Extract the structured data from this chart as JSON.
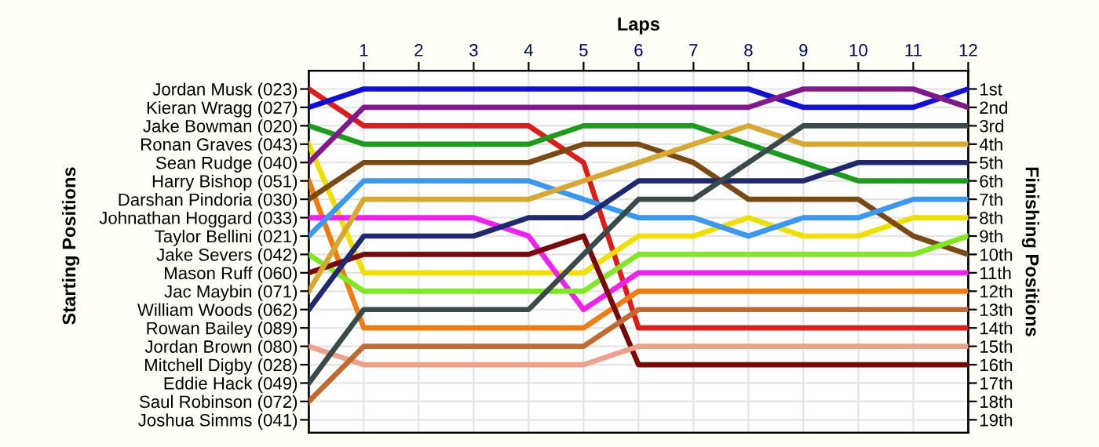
{
  "chart_data": {
    "type": "line",
    "xlabel": "Laps",
    "annotations": [
      "Starting Positions"
    ],
    "y2label": "Finishing Positions",
    "x": [
      0,
      1,
      2,
      3,
      4,
      5,
      6,
      7,
      8,
      9,
      10,
      11,
      12
    ],
    "xlim": [
      0,
      12
    ],
    "xticks": [
      1,
      2,
      3,
      4,
      5,
      6,
      7,
      8,
      9,
      10,
      11,
      12
    ],
    "y2lim": [
      19.7,
      0
    ],
    "y2ticks": [
      {
        "value": 1,
        "label": "1st"
      },
      {
        "value": 2,
        "label": "2nd"
      },
      {
        "value": 3,
        "label": "3rd"
      },
      {
        "value": 4,
        "label": "4th"
      },
      {
        "value": 5,
        "label": "5th"
      },
      {
        "value": 6,
        "label": "6th"
      },
      {
        "value": 7,
        "label": "7th"
      },
      {
        "value": 8,
        "label": "8th"
      },
      {
        "value": 9,
        "label": "9th"
      },
      {
        "value": 10,
        "label": "10th"
      },
      {
        "value": 11,
        "label": "11th"
      },
      {
        "value": 12,
        "label": "12th"
      },
      {
        "value": 13,
        "label": "13th"
      },
      {
        "value": 14,
        "label": "14th"
      },
      {
        "value": 15,
        "label": "15th"
      },
      {
        "value": 16,
        "label": "16th"
      },
      {
        "value": 17,
        "label": "17th"
      },
      {
        "value": 18,
        "label": "18th"
      },
      {
        "value": 19,
        "label": "19th"
      }
    ],
    "grid": true,
    "marker": "none",
    "line_style": "solid",
    "series": [
      {
        "name": "Jordan Musk (023)",
        "axis": "y2",
        "color": "#dd1c1c",
        "values": [
          1,
          3,
          3,
          3,
          3,
          5,
          14,
          14,
          14,
          14,
          14,
          14,
          14
        ]
      },
      {
        "name": "Kieran Wragg (027)",
        "axis": "y2",
        "color": "#1010d8",
        "values": [
          2,
          1,
          1,
          1,
          1,
          1,
          1,
          1,
          1,
          2,
          2,
          2,
          1
        ]
      },
      {
        "name": "Jake Bowman (020)",
        "axis": "y2",
        "color": "#1c9c1c",
        "values": [
          3,
          4,
          4,
          4,
          4,
          3,
          3,
          3,
          4,
          5,
          6,
          6,
          6
        ]
      },
      {
        "name": "Ronan Graves (043)",
        "axis": "y2",
        "color": "#f0e000",
        "values": [
          4,
          11,
          11,
          11,
          11,
          11,
          9,
          9,
          8,
          9,
          9,
          8,
          8
        ]
      },
      {
        "name": "Sean Rudge (040)",
        "axis": "y2",
        "color": "#801a8a",
        "values": [
          5,
          2,
          2,
          2,
          2,
          2,
          2,
          2,
          2,
          1,
          1,
          1,
          2
        ]
      },
      {
        "name": "Harry Bishop (051)",
        "axis": "y2",
        "color": "#f07c10",
        "values": [
          6,
          14,
          14,
          14,
          14,
          14,
          12,
          12,
          12,
          12,
          12,
          12,
          12
        ]
      },
      {
        "name": "Darshan Pindoria (030)",
        "axis": "y2",
        "color": "#7a4a12",
        "values": [
          7,
          5,
          5,
          5,
          5,
          4,
          4,
          5,
          7,
          7,
          7,
          9,
          10
        ]
      },
      {
        "name": "Johnathan Hoggard (033)",
        "axis": "y2",
        "color": "#f020f0",
        "values": [
          8,
          8,
          8,
          8,
          9,
          13,
          11,
          11,
          11,
          11,
          11,
          11,
          11
        ]
      },
      {
        "name": "Taylor Bellini (021)",
        "axis": "y2",
        "color": "#3a98f0",
        "values": [
          9,
          6,
          6,
          6,
          6,
          7,
          8,
          8,
          9,
          8,
          8,
          7,
          7
        ]
      },
      {
        "name": "Jake Severs (042)",
        "axis": "y2",
        "color": "#80e820",
        "values": [
          10,
          12,
          12,
          12,
          12,
          12,
          10,
          10,
          10,
          10,
          10,
          10,
          9
        ]
      },
      {
        "name": "Mason Ruff (060)",
        "axis": "y2",
        "color": "#7a0a0a",
        "values": [
          11,
          10,
          10,
          10,
          10,
          9,
          16,
          16,
          16,
          16,
          16,
          16,
          16
        ]
      },
      {
        "name": "Jac Maybin (071)",
        "axis": "y2",
        "color": "#d8a830",
        "values": [
          12,
          7,
          7,
          7,
          7,
          6,
          5,
          4,
          3,
          4,
          4,
          4,
          4
        ]
      },
      {
        "name": "William Woods (062)",
        "axis": "y2",
        "color": "#202870",
        "values": [
          13,
          9,
          9,
          9,
          8,
          8,
          6,
          6,
          6,
          6,
          5,
          5,
          5
        ]
      },
      {
        "name": "Rowan Bailey (089)",
        "axis": "y2",
        "values": [
          null,
          null,
          null,
          null,
          null,
          null,
          null,
          null,
          null,
          null,
          null,
          null,
          null
        ]
      },
      {
        "name": "Jordan Brown (080)",
        "axis": "y2",
        "color": "#f0a088",
        "values": [
          15,
          16,
          16,
          16,
          16,
          16,
          15,
          15,
          15,
          15,
          15,
          15,
          15
        ]
      },
      {
        "name": "Mitchell Digby (028)",
        "axis": "y2",
        "values": [
          null,
          null,
          null,
          null,
          null,
          null,
          null,
          null,
          null,
          null,
          null,
          null,
          null
        ]
      },
      {
        "name": "Eddie Hack (049)",
        "axis": "y2",
        "color": "#3a4a4a",
        "values": [
          17,
          13,
          13,
          13,
          13,
          10,
          7,
          7,
          5,
          3,
          3,
          3,
          3
        ]
      },
      {
        "name": "Saul Robinson (072)",
        "axis": "y2",
        "color": "#c06a30",
        "values": [
          18,
          15,
          15,
          15,
          15,
          15,
          13,
          13,
          13,
          13,
          13,
          13,
          13
        ]
      },
      {
        "name": "Joshua Simms (041)",
        "axis": "y2",
        "values": [
          null,
          null,
          null,
          null,
          null,
          null,
          null,
          null,
          null,
          null,
          null,
          null,
          null
        ]
      }
    ]
  }
}
